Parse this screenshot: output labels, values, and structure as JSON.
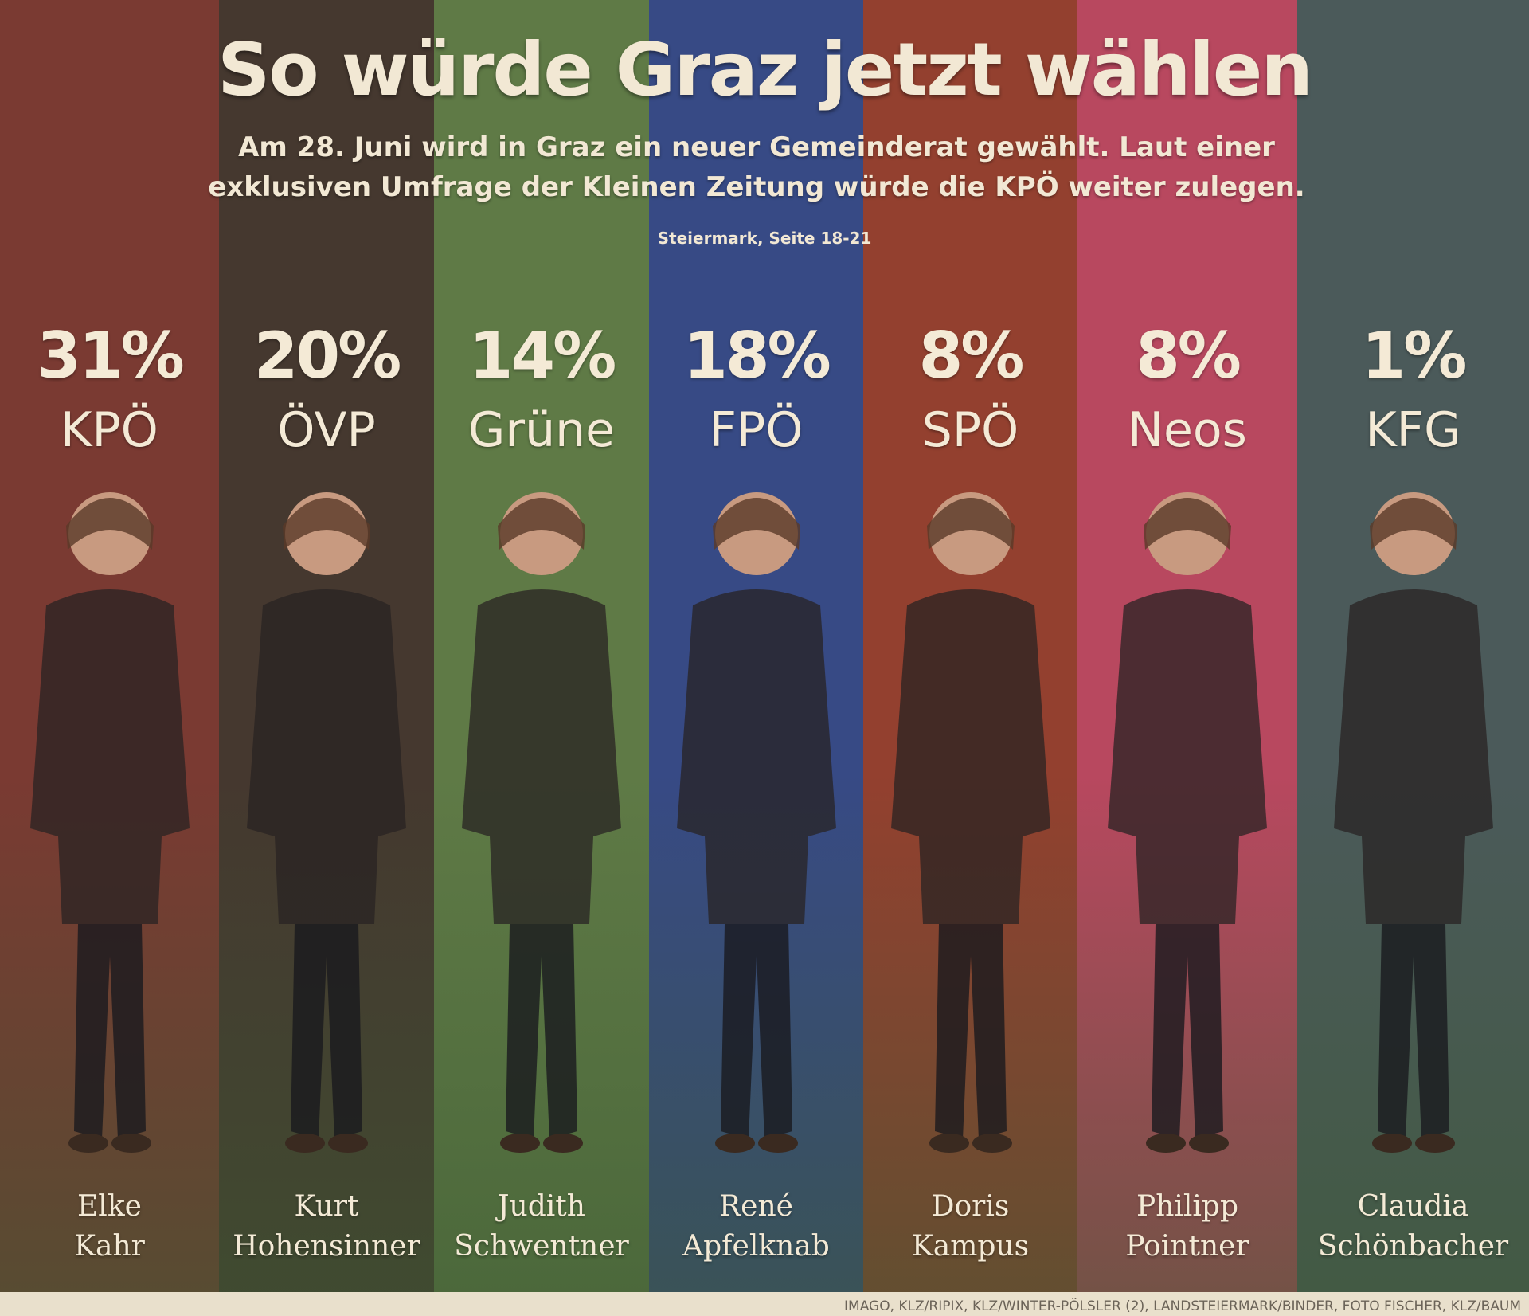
{
  "header": {
    "title": "So würde Graz jetzt wählen",
    "subtitle_line1": "Am 28. Juni wird in Graz ein neuer Gemeinderat gewählt. Laut einer",
    "subtitle_line2": "exklusiven Umfrage der Kleinen Zeitung würde die KPÖ weiter zulegen.",
    "reference": "Steiermark, Seite 18-21"
  },
  "credit": "IMAGO, KLZ/RIPIX, KLZ/WINTER-PÖLSLER (2), LANDSTEIERMARK/BINDER, FOTO FISCHER, KLZ/BAUM",
  "parties": [
    {
      "percent": "31%",
      "party": "KPÖ",
      "first": "Elke",
      "last": "Kahr",
      "color": "#7a3a32"
    },
    {
      "percent": "20%",
      "party": "ÖVP",
      "first": "Kurt",
      "last": "Hohensinner",
      "color": "#45382f"
    },
    {
      "percent": "14%",
      "party": "Grüne",
      "first": "Judith",
      "last": "Schwentner",
      "color": "#5f7a46"
    },
    {
      "percent": "18%",
      "party": "FPÖ",
      "first": "René",
      "last": "Apfelknab",
      "color": "#374a85"
    },
    {
      "percent": "8%",
      "party": "SPÖ",
      "first": "Doris",
      "last": "Kampus",
      "color": "#93402f"
    },
    {
      "percent": "8%",
      "party": "Neos",
      "first": "Philipp",
      "last": "Pointner",
      "color": "#b8485f"
    },
    {
      "percent": "1%",
      "party": "KFG",
      "first": "Claudia",
      "last": "Schönbacher",
      "color": "#4b5a5a"
    }
  ],
  "chart_data": {
    "type": "bar",
    "title": "So würde Graz jetzt wählen",
    "categories": [
      "KPÖ",
      "ÖVP",
      "Grüne",
      "FPÖ",
      "SPÖ",
      "Neos",
      "KFG"
    ],
    "values": [
      31,
      20,
      14,
      18,
      8,
      8,
      1
    ],
    "unit": "%",
    "xlabel": "",
    "ylabel": ""
  }
}
